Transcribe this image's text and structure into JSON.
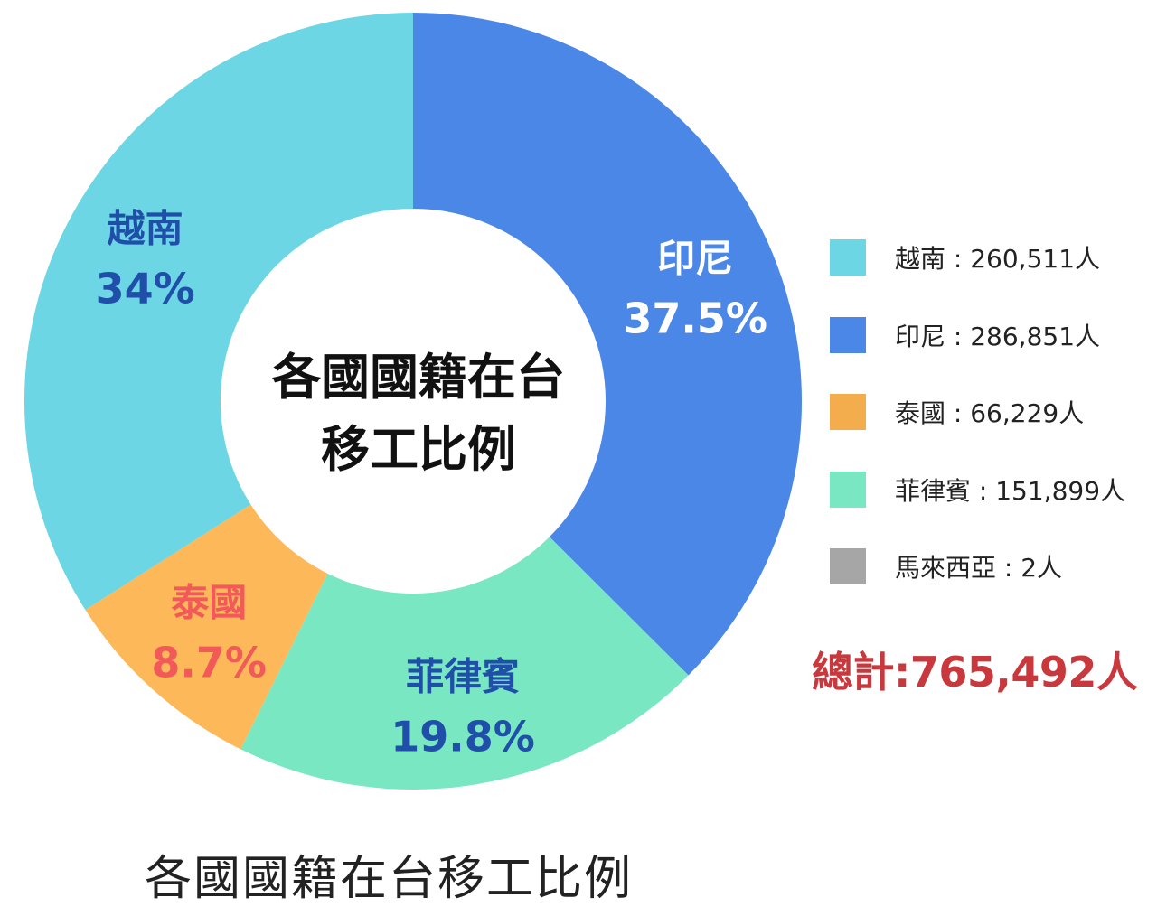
{
  "chart_data": {
    "type": "pie",
    "center_title_lines": [
      "各國國籍在台",
      "移工比例"
    ],
    "caption": "各國國籍在台移工比例",
    "total_label": "總計:765,492人",
    "slices": [
      {
        "label": "印尼",
        "percent_label": "37.5%",
        "value": 286851,
        "color": "#4b87e7",
        "label_color": "#ffffff",
        "legend_text": "印尼 : 286,851人"
      },
      {
        "label": "菲律賓",
        "percent_label": "19.8%",
        "value": 151899,
        "color": "#7ae7c3",
        "label_color": "#1f4fa8",
        "legend_text": "菲律賓 : 151,899人"
      },
      {
        "label": "泰國",
        "percent_label": "8.7%",
        "value": 66229,
        "color": "#fdb85a",
        "label_color": "#f25a5a",
        "legend_text": "泰國 : 66,229人"
      },
      {
        "label": "越南",
        "percent_label": "34%",
        "value": 260511,
        "color": "#6cd6e5",
        "label_color": "#1f4fa8",
        "legend_text": "越南 : 260,511人"
      },
      {
        "label": "馬來西亞",
        "percent_label": "",
        "value": 2,
        "color": "#a6a6a6",
        "label_color": "#333333",
        "legend_text": "馬來西亞 : 2人"
      }
    ],
    "legend_order": [
      "越南",
      "印尼",
      "泰國",
      "菲律賓",
      "馬來西亞"
    ],
    "legend_colors": {
      "越南": "#6cd6e5",
      "印尼": "#4b87e7",
      "泰國": "#f3ad4c",
      "菲律賓": "#7ae7c3",
      "馬來西亞": "#a6a6a6"
    }
  }
}
